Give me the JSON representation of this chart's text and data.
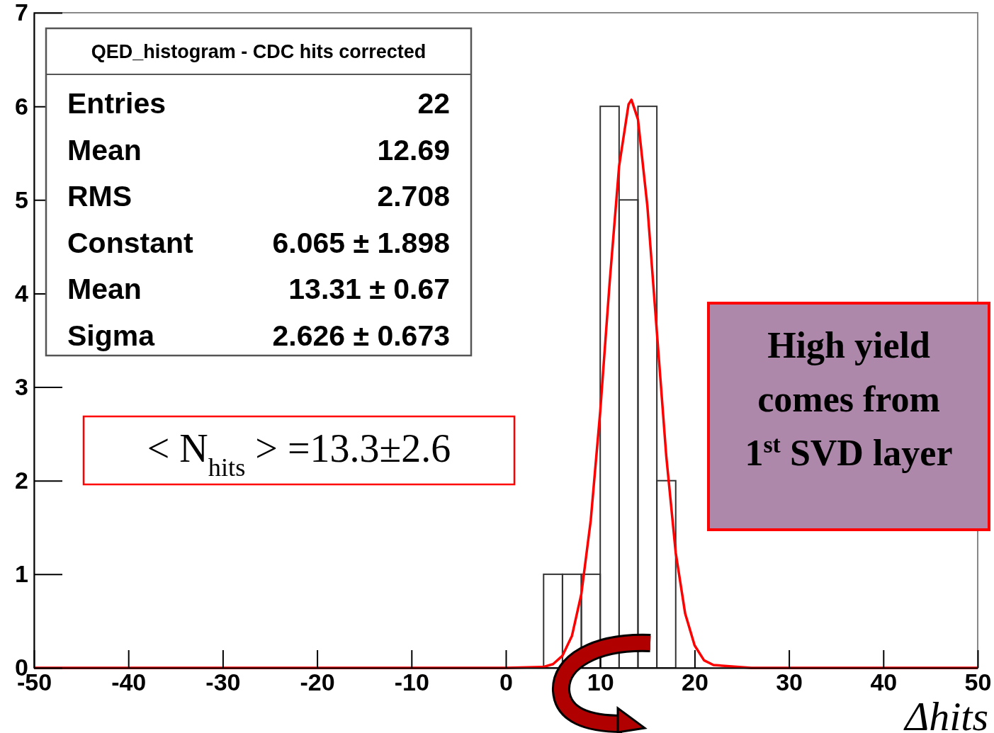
{
  "chart_data": {
    "type": "histogram",
    "xlabel": "Δhits",
    "bins": [
      4,
      6,
      8,
      10,
      12,
      14,
      16,
      18
    ],
    "values": [
      1,
      1,
      1,
      6,
      5,
      6,
      2
    ],
    "color": "#333333",
    "series": [
      {
        "type": "line",
        "color": "#ff0000",
        "x": [
          -50,
          0,
          4,
          5,
          6,
          7,
          8,
          9,
          10,
          11,
          12,
          13,
          13.31,
          14,
          15,
          16,
          17,
          18,
          19,
          20,
          21,
          22,
          26,
          50
        ],
        "values": [
          0,
          0,
          0.01,
          0.04,
          0.13,
          0.34,
          0.79,
          1.58,
          2.74,
          4.12,
          5.36,
          6.02,
          6.07,
          5.86,
          4.93,
          3.59,
          2.26,
          1.23,
          0.58,
          0.24,
          0.08,
          0.03,
          0,
          0
        ]
      }
    ],
    "xlim": [
      -50,
      50
    ],
    "xticks": [
      -50,
      -40,
      -30,
      -20,
      -10,
      0,
      10,
      20,
      30,
      40,
      50
    ],
    "ylim": [
      0,
      7
    ],
    "yticks": [
      0,
      1,
      2,
      3,
      4,
      5,
      6,
      7
    ],
    "grid": false,
    "annotations": [
      "QED_histogram - CDC hits corrected",
      "Entries",
      "22",
      "Mean",
      "12.69",
      "RMS",
      "2.708",
      "Constant",
      "6.065 ± 1.898",
      "Mean",
      "13.31 ± 0.67",
      "Sigma",
      "2.626 ± 0.673",
      "< N$_{hits}$ > =13.3±2.6",
      "High yield\ncomes from\n1$^{st}$ SVD layer"
    ]
  }
}
